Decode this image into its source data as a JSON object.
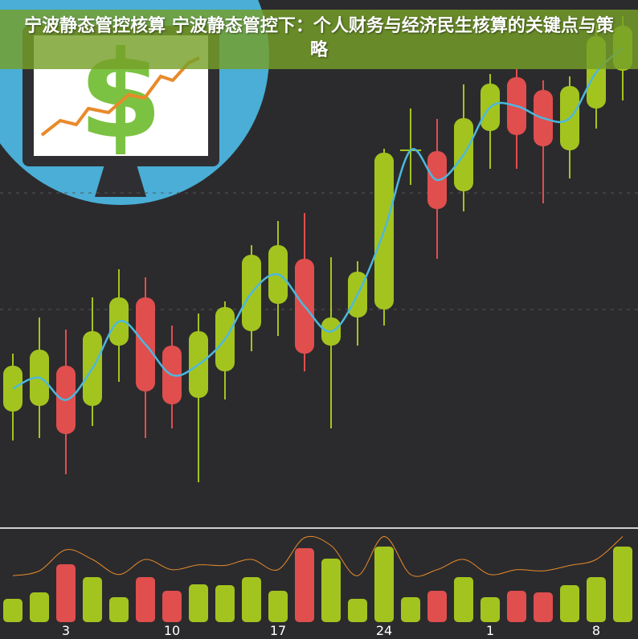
{
  "title": "宁波静态管控核算 宁波静态管控下：个人财务与经济民生核算的关键点与策略",
  "colors": {
    "up": "#a3c41f",
    "down": "#e04e4e",
    "ma": "#4db8dd",
    "volume_line": "#e88a2a",
    "background": "#2b2b2d",
    "circle": "#4aaed6"
  },
  "icon": "monitor-dollar-growth-icon",
  "chart_data": {
    "type": "candlestick",
    "title": "",
    "xlabel": "",
    "ylabel": "",
    "ylim": [
      6,
      70
    ],
    "grid": "dashed horizontal",
    "x_tick_labels": [
      {
        "index": 2,
        "label": "3"
      },
      {
        "index": 6,
        "label": "10"
      },
      {
        "index": 10,
        "label": "17"
      },
      {
        "index": 14,
        "label": "24"
      },
      {
        "index": 18,
        "label": "1"
      },
      {
        "index": 22,
        "label": "8"
      }
    ],
    "candles": [
      {
        "open": 18.8,
        "close": 24.5,
        "high": 26,
        "low": 15.2
      },
      {
        "open": 19.5,
        "close": 26.5,
        "high": 30.5,
        "low": 15.5
      },
      {
        "open": 24.5,
        "close": 16,
        "high": 29,
        "low": 11
      },
      {
        "open": 19.5,
        "close": 28.8,
        "high": 33,
        "low": 17
      },
      {
        "open": 27,
        "close": 33,
        "high": 36.5,
        "low": 22.5
      },
      {
        "open": 33,
        "close": 21.3,
        "high": 35.5,
        "low": 15.5
      },
      {
        "open": 27,
        "close": 19.7,
        "high": 29.5,
        "low": 16.7
      },
      {
        "open": 20.5,
        "close": 28.8,
        "high": 31,
        "low": 10
      },
      {
        "open": 23.8,
        "close": 31.8,
        "high": 32.5,
        "low": 20.3
      },
      {
        "open": 28.8,
        "close": 38.3,
        "high": 39.5,
        "low": 26.3
      },
      {
        "open": 32.2,
        "close": 39.5,
        "high": 42.5,
        "low": 28.2
      },
      {
        "open": 37.8,
        "close": 26,
        "high": 43.5,
        "low": 23.8
      },
      {
        "open": 27,
        "close": 30.5,
        "high": 38,
        "low": 16.7
      },
      {
        "open": 30.5,
        "close": 36.2,
        "high": 37.5,
        "low": 27
      },
      {
        "open": 31.5,
        "close": 51,
        "high": 51.5,
        "low": 29.5
      },
      {
        "open": 51.3,
        "close": 51.3,
        "high": 56.5,
        "low": 47
      },
      {
        "open": 51.2,
        "close": 44,
        "high": 55.2,
        "low": 37.8
      },
      {
        "open": 46.2,
        "close": 55.3,
        "high": 59.5,
        "low": 43.7
      },
      {
        "open": 53.7,
        "close": 59.6,
        "high": 60.8,
        "low": 49
      },
      {
        "open": 60.4,
        "close": 53.2,
        "high": 61.4,
        "low": 49
      },
      {
        "open": 58.8,
        "close": 51.8,
        "high": 60,
        "low": 44.7
      },
      {
        "open": 51.3,
        "close": 59.3,
        "high": 60.5,
        "low": 47.8
      },
      {
        "open": 56.5,
        "close": 65.5,
        "high": 67,
        "low": 54
      },
      {
        "open": 61.2,
        "close": 66.8,
        "high": 68,
        "low": 57.5
      }
    ],
    "volumes": [
      25,
      33,
      68,
      52,
      27,
      52,
      35,
      43,
      42,
      52,
      35,
      88,
      75,
      25,
      90,
      27,
      35,
      52,
      27,
      35,
      33,
      42,
      52,
      90
    ]
  }
}
